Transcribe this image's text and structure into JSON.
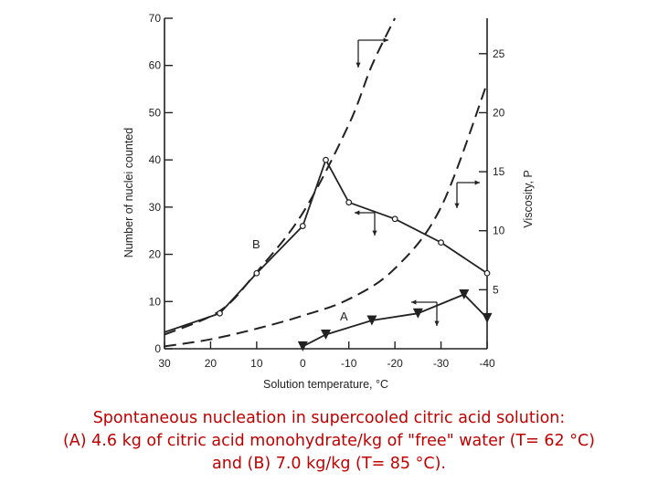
{
  "chart_data": {
    "type": "line",
    "xlabel": "Solution temperature, °C",
    "ylabel_left": "Number of nuclei counted",
    "ylabel_right": "Viscosity, P",
    "x_ticks": [
      "30",
      "20",
      "10",
      "0",
      "-10",
      "-20",
      "-30",
      "-40"
    ],
    "y_left_ticks": [
      "0",
      "10",
      "20",
      "30",
      "40",
      "50",
      "60",
      "70"
    ],
    "y_right_ticks": [
      "5",
      "10",
      "15",
      "20",
      "25"
    ],
    "xlim": [
      30,
      -40
    ],
    "ylim_left": [
      0,
      70
    ],
    "ylim_right": [
      0,
      28
    ],
    "grid": false,
    "series": [
      {
        "name": "B",
        "axis": "left",
        "style": "solid-open-circles",
        "x": [
          30,
          18,
          10,
          0,
          -5,
          -10,
          -20,
          -30,
          -40
        ],
        "y": [
          3.5,
          7.5,
          16,
          26,
          40,
          31,
          27.5,
          22.5,
          16
        ]
      },
      {
        "name": "A",
        "axis": "left",
        "style": "solid-filled-triangles",
        "x": [
          0,
          -5,
          -15,
          -25,
          -35,
          -40
        ],
        "y": [
          0.5,
          3,
          6,
          7.5,
          11.5,
          6.5
        ]
      },
      {
        "name": "viscosity B",
        "axis": "right",
        "style": "dashed",
        "x": [
          30,
          18,
          10,
          0,
          -10,
          -15,
          -20
        ],
        "y": [
          1.2,
          3.2,
          6.5,
          11.5,
          19,
          24,
          28
        ]
      },
      {
        "name": "viscosity A",
        "axis": "right",
        "style": "dashed",
        "x": [
          30,
          20,
          10,
          0,
          -10,
          -20,
          -30,
          -40
        ],
        "y": [
          0.2,
          0.8,
          1.7,
          2.8,
          4.2,
          6.8,
          12,
          22.5
        ]
      }
    ],
    "annotations": [
      "B",
      "A"
    ]
  },
  "caption": {
    "line1": "Spontaneous nucleation in supercooled citric acid solution:",
    "line2": "(A) 4.6 kg of citric acid monohydrate/kg of \"free\" water (T= 62 °C)",
    "line3": "and (B) 7.0 kg/kg (T= 85 °C)."
  },
  "colors": {
    "ink": "#222222",
    "caption": "#c00000",
    "background": "#ffffff"
  }
}
